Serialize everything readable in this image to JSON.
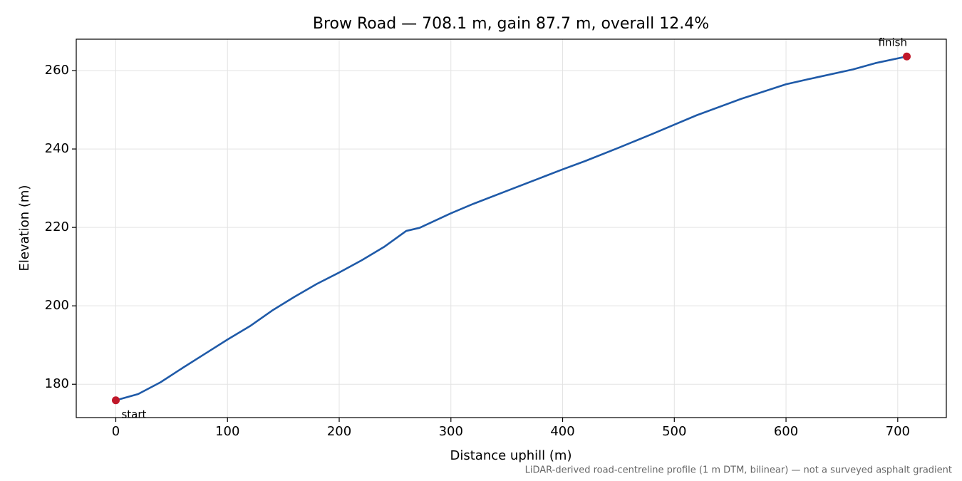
{
  "chart_data": {
    "type": "line",
    "title": "Brow Road — 708.1 m, gain 87.7 m, overall 12.4%",
    "xlabel": "Distance uphill (m)",
    "ylabel": "Elevation (m)",
    "footnote": "LiDAR-derived road-centreline profile (1 m DTM, bilinear) — not a surveyed asphalt gradient",
    "x": [
      0,
      20,
      40,
      60,
      80,
      100,
      120,
      140,
      160,
      180,
      200,
      220,
      240,
      260,
      272,
      300,
      320,
      350,
      380,
      400,
      420,
      450,
      480,
      500,
      520,
      560,
      600,
      620,
      660,
      680,
      708.1
    ],
    "series": [
      {
        "color": "#1f5aa8",
        "values": [
          175.9,
          177.5,
          180.5,
          184.2,
          187.8,
          191.4,
          194.8,
          198.8,
          202.3,
          205.6,
          208.5,
          211.6,
          215.0,
          219.1,
          219.9,
          223.6,
          226.0,
          229.3,
          232.6,
          234.8,
          236.9,
          240.3,
          243.8,
          246.2,
          248.6,
          252.8,
          256.5,
          257.8,
          260.3,
          261.9,
          263.6
        ]
      }
    ],
    "markers": {
      "color": "#c0182a",
      "x": [
        0,
        708.1
      ],
      "values": [
        175.9,
        263.6
      ],
      "labels": [
        "start",
        "finish"
      ]
    },
    "xlim": [
      -35.4,
      743.5
    ],
    "ylim": [
      171.5,
      268.0
    ],
    "xticks": [
      0,
      100,
      200,
      300,
      400,
      500,
      600,
      700
    ],
    "yticks": [
      180,
      200,
      220,
      240,
      260
    ],
    "grid": true
  }
}
